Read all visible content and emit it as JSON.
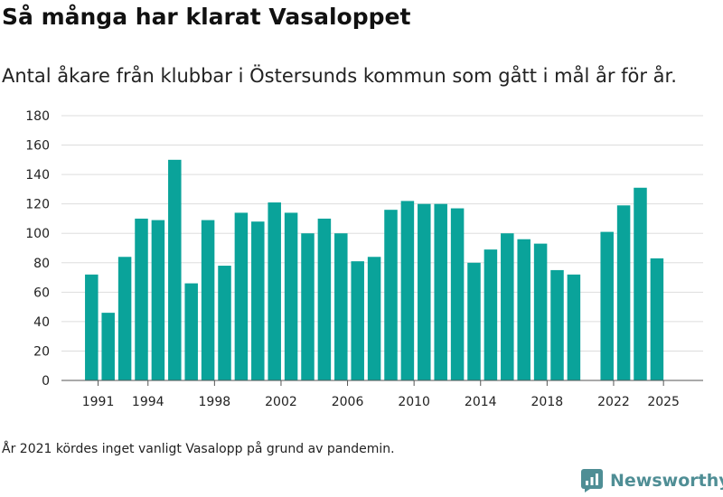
{
  "header": {
    "title": "Så många har klarat Vasaloppet",
    "subtitle": "Antal åkare från klubbar i Östersunds kommun som gått i mål år för år."
  },
  "footer": {
    "note": "År 2021 kördes inget vanligt Vasalopp på grund av pandemin.",
    "brand": "Newsworthy",
    "brand_icon": "newsworthy-logo-icon"
  },
  "colors": {
    "bar": "#0aa39a",
    "grid": "#dddddd",
    "axis": "#555555",
    "brand": "#4f8e95"
  },
  "chart_data": {
    "type": "bar",
    "title": "Så många har klarat Vasaloppet",
    "xlabel": "",
    "ylabel": "",
    "ylim": [
      0,
      180
    ],
    "yticks": [
      0,
      20,
      40,
      60,
      80,
      100,
      120,
      140,
      160,
      180
    ],
    "xticks": [
      1991,
      1994,
      1998,
      2002,
      2006,
      2010,
      2014,
      2018,
      2022,
      2025
    ],
    "grid": true,
    "legend": "none",
    "categories": [
      1991,
      1992,
      1993,
      1994,
      1995,
      1996,
      1997,
      1998,
      1999,
      2000,
      2001,
      2002,
      2003,
      2004,
      2005,
      2006,
      2007,
      2008,
      2009,
      2010,
      2011,
      2012,
      2013,
      2014,
      2015,
      2016,
      2017,
      2018,
      2019,
      2020,
      2021,
      2022,
      2023,
      2024,
      2025
    ],
    "values": [
      72,
      46,
      84,
      110,
      109,
      150,
      66,
      109,
      78,
      114,
      108,
      121,
      114,
      100,
      110,
      100,
      81,
      84,
      116,
      122,
      120,
      120,
      117,
      80,
      89,
      100,
      96,
      93,
      75,
      72,
      null,
      101,
      119,
      131,
      83
    ]
  }
}
